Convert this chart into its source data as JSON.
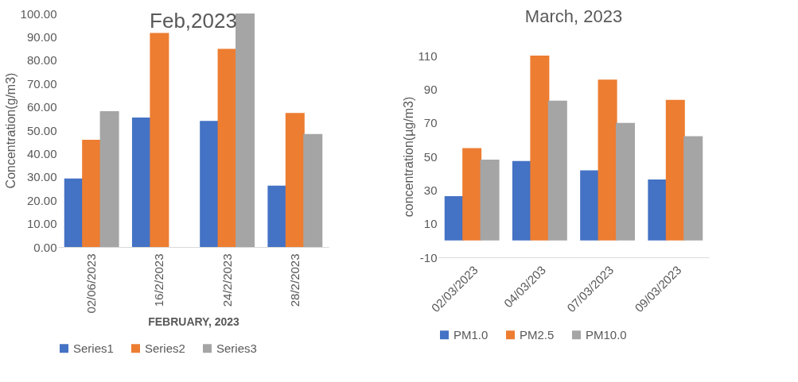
{
  "chart_data": [
    {
      "type": "bar",
      "title": "Feb,2023",
      "ylabel": "Concentration(g/m3)",
      "xlabel": "FEBRUARY, 2023",
      "categories": [
        "02/06/2023",
        "16/2/2023",
        "24/2/2023",
        "28/2/2023"
      ],
      "series": [
        {
          "name": "Series1",
          "color": "#4472c4",
          "values": [
            29.3,
            55.4,
            54.0,
            26.3
          ]
        },
        {
          "name": "Series2",
          "color": "#ed7d31",
          "values": [
            45.9,
            91.7,
            84.9,
            57.4
          ]
        },
        {
          "name": "Series3",
          "color": "#a5a5a5",
          "values": [
            58.2,
            null,
            100,
            48.4
          ]
        }
      ],
      "ylim": [
        0,
        100
      ],
      "yticks": [
        {
          "value": 0,
          "label": "0.00"
        },
        {
          "value": 10,
          "label": "10.00"
        },
        {
          "value": 20,
          "label": "20.00"
        },
        {
          "value": 30,
          "label": "30.00"
        },
        {
          "value": 40,
          "label": "40.00"
        },
        {
          "value": 50,
          "label": "50.00"
        },
        {
          "value": 60,
          "label": "60.00"
        },
        {
          "value": 70,
          "label": "70.00"
        },
        {
          "value": 80,
          "label": "80.00"
        },
        {
          "value": 90,
          "label": "90.00"
        },
        {
          "value": 100,
          "label": "100.00"
        }
      ],
      "grid": false,
      "legend": "bottom"
    },
    {
      "type": "bar",
      "title": "March, 2023",
      "ylabel": "concentration(µg/m3)",
      "categories": [
        "02/03/2023",
        "04/03/203",
        "07/03/2023",
        "09/03/2023"
      ],
      "series": [
        {
          "name": "PM1.0",
          "color": "#4472c4",
          "values": [
            26.4,
            47.3,
            41.7,
            36.3
          ]
        },
        {
          "name": "PM2.5",
          "color": "#ed7d31",
          "values": [
            55.0,
            110,
            95.7,
            83.7
          ]
        },
        {
          "name": "PM10.0",
          "color": "#a5a5a5",
          "values": [
            48.1,
            83.2,
            70.0,
            62.0
          ]
        }
      ],
      "ylim": [
        -10,
        110
      ],
      "yticks": [
        -10,
        10,
        30,
        50,
        70,
        90,
        110
      ],
      "grid": false,
      "legend": "bottom"
    }
  ]
}
